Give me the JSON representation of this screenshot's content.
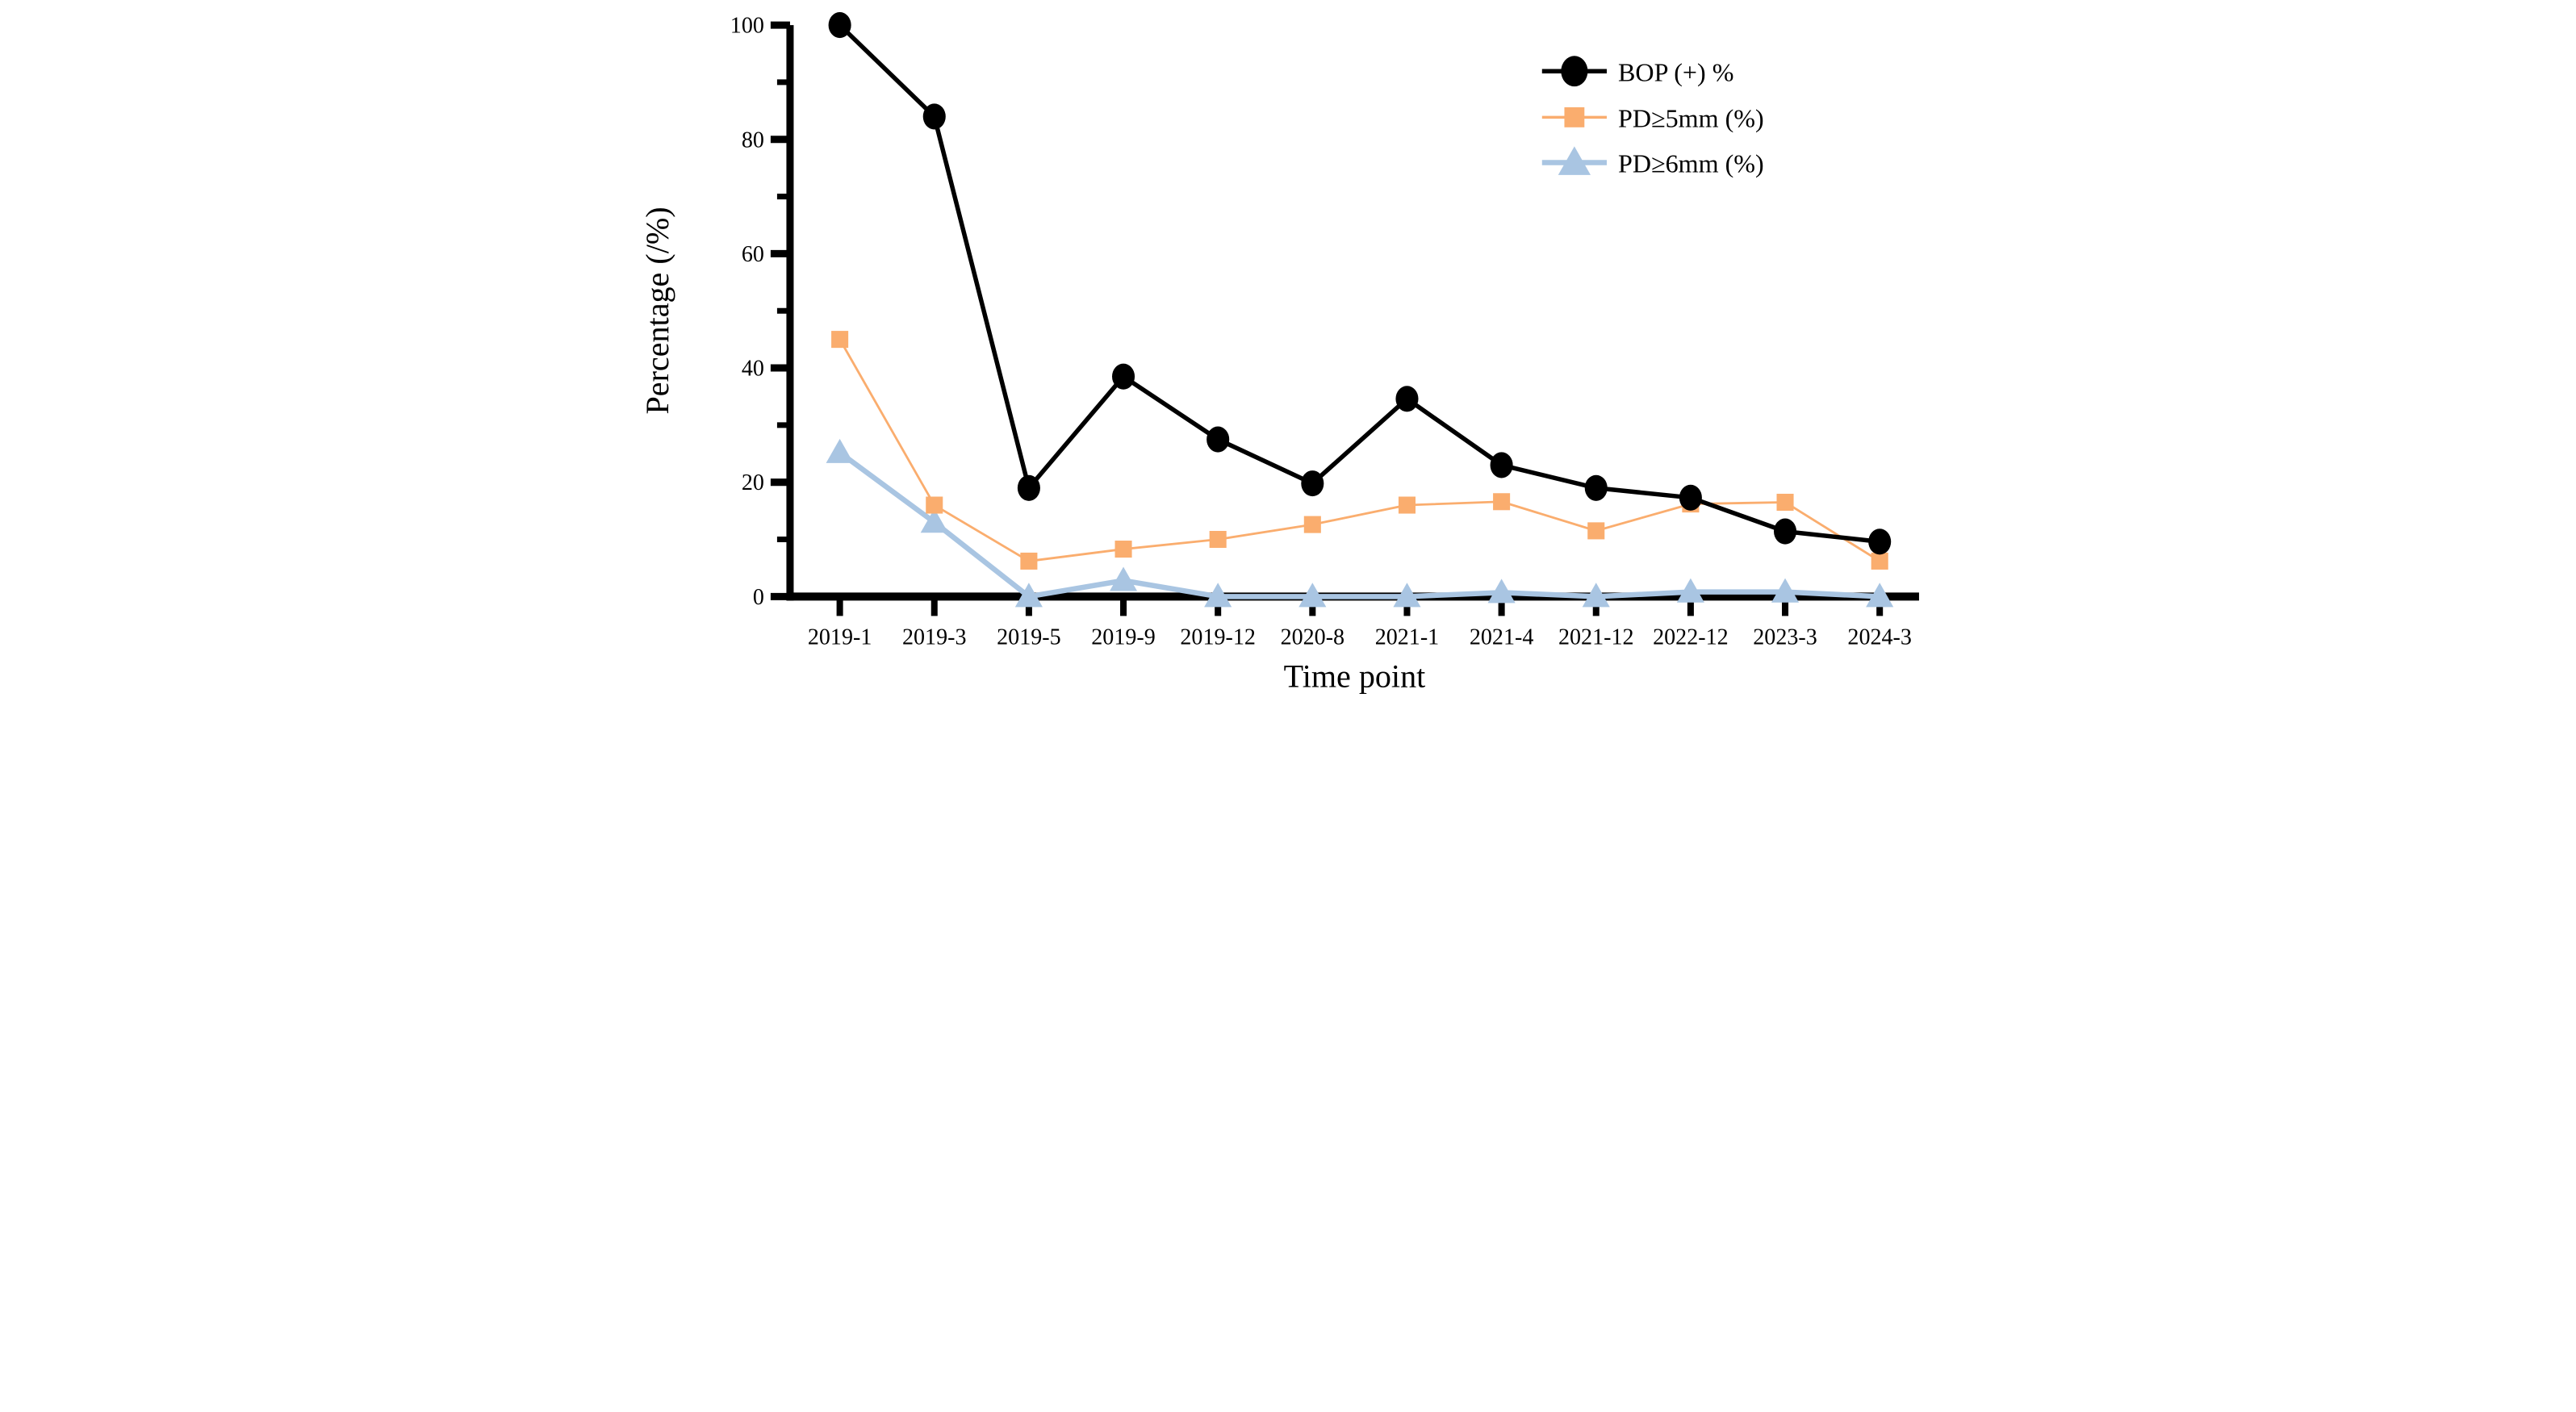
{
  "chart_data": {
    "type": "line",
    "title": "",
    "xlabel": "Time point",
    "ylabel": "Percentage (/%)",
    "ylim": [
      0,
      100
    ],
    "y_major_ticks": [
      0,
      20,
      40,
      60,
      80,
      100
    ],
    "y_minor_ticks": [
      10,
      30,
      50,
      70,
      90
    ],
    "grid": "off",
    "legend_position": "top-right",
    "categories": [
      "2019-1",
      "2019-3",
      "2019-5",
      "2019-9",
      "2019-12",
      "2020-8",
      "2021-1",
      "2021-4",
      "2021-12",
      "2022-12",
      "2023-3",
      "2024-3"
    ],
    "series": [
      {
        "name": "BOP (+) %",
        "marker": "circle",
        "color": "#000000",
        "values": [
          100,
          84,
          19,
          38.5,
          27.5,
          19.8,
          34.6,
          23,
          19,
          17.3,
          11.4,
          9.6
        ]
      },
      {
        "name": "PD≥5mm (%)",
        "marker": "square",
        "color": "#FAAD6E",
        "values": [
          45,
          16,
          6.2,
          8.3,
          10,
          12.6,
          16,
          16.6,
          11.5,
          16.2,
          16.5,
          6.2
        ]
      },
      {
        "name": "PD≥6mm (%)",
        "marker": "triangle",
        "color": "#A9C5E2",
        "values": [
          25.2,
          13,
          0,
          2.8,
          0,
          0,
          0,
          0.7,
          0,
          0.8,
          0.8,
          0
        ]
      }
    ]
  }
}
